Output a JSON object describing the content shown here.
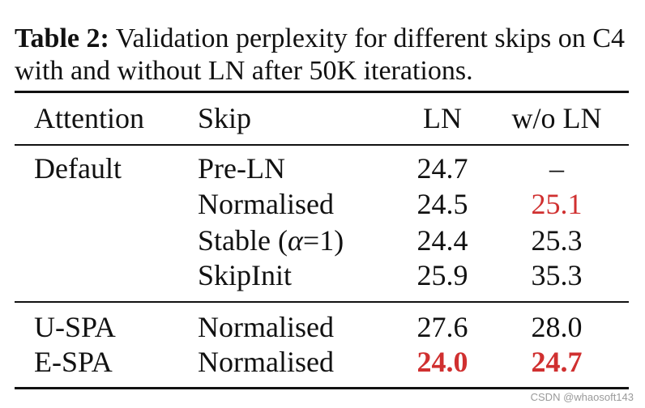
{
  "caption": {
    "label": "Table 2:",
    "text": " Validation perplexity for different skips on C4 with and without LN after 50K iterations."
  },
  "table": {
    "headers": {
      "attention": "Attention",
      "skip": "Skip",
      "ln": "LN",
      "woln": "w/o LN"
    },
    "rows": [
      {
        "attention": "Default",
        "skip": "Pre-LN",
        "ln": "24.7",
        "woln": "–"
      },
      {
        "attention": "",
        "skip": "Normalised",
        "ln": "24.5",
        "woln": "25.1"
      },
      {
        "attention": "",
        "skip_prefix": "Stable (",
        "skip_alpha": "α",
        "skip_suffix": "=1)",
        "ln": "24.4",
        "woln": "25.3"
      },
      {
        "attention": "",
        "skip": "SkipInit",
        "ln": "25.9",
        "woln": "35.3"
      },
      {
        "attention": "U-SPA",
        "skip": "Normalised",
        "ln": "27.6",
        "woln": "28.0"
      },
      {
        "attention": "E-SPA",
        "skip": "Normalised",
        "ln": "24.0",
        "woln": "24.7"
      }
    ]
  },
  "colors": {
    "highlight": "#d03030",
    "text": "#111111"
  },
  "watermark": "CSDN @whaosoft143"
}
